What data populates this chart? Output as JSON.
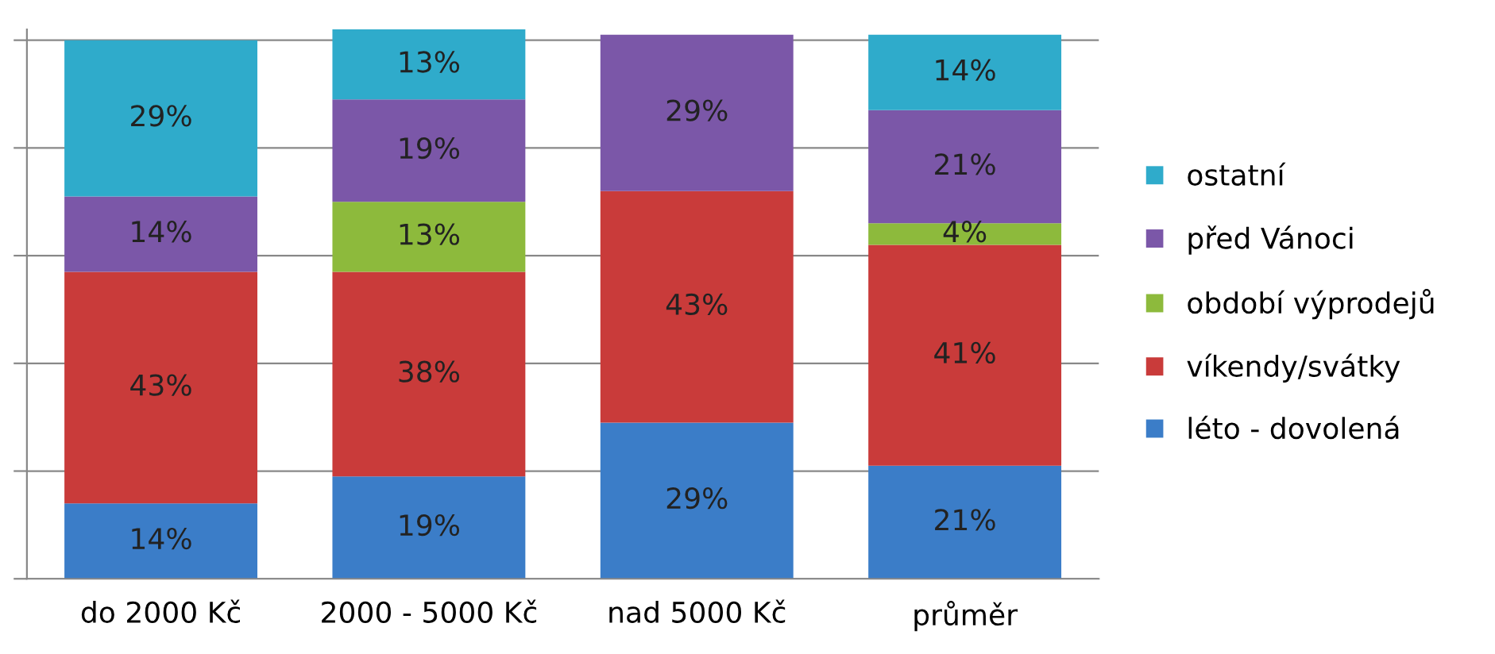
{
  "chart_data": {
    "type": "bar",
    "stacked": true,
    "categories": [
      "do 2000 Kč",
      "2000 - 5000 Kč",
      "nad 5000 Kč",
      "průměr"
    ],
    "series": [
      {
        "name": "léto - dovolená",
        "color": "#3b7dc8",
        "values": [
          14,
          19,
          29,
          21
        ],
        "value_labels": [
          "14%",
          "19%",
          "29%",
          "21%"
        ]
      },
      {
        "name": "víkendy/svátky",
        "color": "#c93b3a",
        "values": [
          43,
          38,
          43,
          41
        ],
        "value_labels": [
          "43%",
          "38%",
          "43%",
          "41%"
        ]
      },
      {
        "name": "období výprodejů",
        "color": "#8dba3c",
        "values": [
          null,
          13,
          null,
          4
        ],
        "value_labels": [
          null,
          "13%",
          null,
          "4%"
        ]
      },
      {
        "name": "před Vánoci",
        "color": "#7b57a8",
        "values": [
          14,
          19,
          29,
          21
        ],
        "value_labels": [
          "14%",
          "19%",
          "29%",
          "21%"
        ]
      },
      {
        "name": "ostatní",
        "color": "#2fabcb",
        "values": [
          29,
          13,
          null,
          14
        ],
        "value_labels": [
          "29%",
          "13%",
          null,
          "14%"
        ]
      }
    ],
    "ylim": [
      0,
      102
    ],
    "yticks": [
      {
        "value": 0,
        "label": null
      },
      {
        "value": 20,
        "label": null
      },
      {
        "value": 40,
        "label": null
      },
      {
        "value": 60,
        "label": null
      },
      {
        "value": 80,
        "label": null
      },
      {
        "value": 100,
        "label": null
      }
    ],
    "tick_labels": "x",
    "grid": "y",
    "legend": "right"
  }
}
